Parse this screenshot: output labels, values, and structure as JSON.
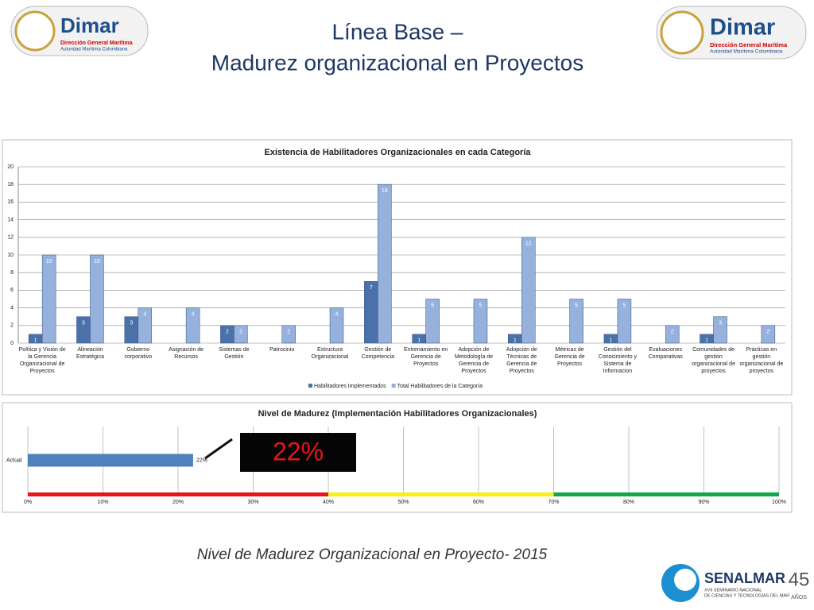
{
  "slide": {
    "title_line1": "Línea Base –",
    "title_line2": "Madurez organizacional en Proyectos",
    "caption": "Nivel de Madurez Organizacional en Proyecto- 2015"
  },
  "logo": {
    "name": "Dimar",
    "line1": "Dirección General Marítima",
    "line2": "Autoridad Marítima Colombiana"
  },
  "footer_logo": {
    "name": "SENALMAR",
    "line1": "XVII SEMINARIO NACIONAL",
    "line2": "DE CIENCIAS Y TECNOLOGÍAS DEL MAR",
    "years": "45",
    "years_label": "AÑOS"
  },
  "chart_data": [
    {
      "type": "grouped-bar",
      "title": "Existencia de Habilitadores Organizacionales en cada Categoría",
      "categories": [
        "Política y Visión de la Gerencia Organizacional de Proyectos",
        "Alineación Estratégica",
        "Gobierno corporativo",
        "Asignación de Recursos",
        "Sistemas de Gestión",
        "Patrocinio",
        "Estructura Organizacional",
        "Gestión de Competencia",
        "Entrenamiento en Gerencia de Proyectos",
        "Adopción de Metodología de Gerencia de Proyectos",
        "Adopción de Técnicas de Gerencia de Proyectos",
        "Métricas de Gerencia de Proyectos",
        "Gestión del Conocimiento y Sistema de Informacion",
        "Evaluaciones Comparativas",
        "Comunidades de gestión organizacional de proyectos",
        "Prácticas en gestión organizacional de proyectos"
      ],
      "series": [
        {
          "name": "Habilitadores Implementados",
          "color": "#4a72a8",
          "values": [
            1,
            3,
            3,
            null,
            2,
            null,
            null,
            7,
            1,
            null,
            1,
            null,
            1,
            null,
            1,
            null
          ]
        },
        {
          "name": "Total Habilitadores de la Categoría",
          "color": "#97b1dd",
          "values": [
            10,
            10,
            4,
            4,
            2,
            2,
            4,
            18,
            5,
            5,
            12,
            5,
            5,
            2,
            3,
            2
          ]
        }
      ],
      "ylim": [
        0,
        20
      ],
      "yticks": [
        0,
        2,
        4,
        6,
        8,
        10,
        12,
        14,
        16,
        18,
        20
      ],
      "grid": true,
      "legend": "bottom"
    },
    {
      "type": "hbar",
      "title": "Nivel de Madurez (Implementación Habilitadores Organizacionales)",
      "categories": [
        "Actual"
      ],
      "values": [
        22
      ],
      "value_labels": [
        "22%"
      ],
      "color": "#4f81bd",
      "xlim": [
        0,
        100
      ],
      "xticks": [
        {
          "value": 0,
          "label": "0%"
        },
        {
          "value": 10,
          "label": "10%"
        },
        {
          "value": 20,
          "label": "20%"
        },
        {
          "value": 30,
          "label": "30%"
        },
        {
          "value": 40,
          "label": "40%"
        },
        {
          "value": 50,
          "label": "50%"
        },
        {
          "value": 60,
          "label": "60%"
        },
        {
          "value": 70,
          "label": "70%"
        },
        {
          "value": 80,
          "label": "80%"
        },
        {
          "value": 90,
          "label": "90%"
        },
        {
          "value": 100,
          "label": "100%"
        }
      ],
      "grid": true,
      "bands": [
        {
          "from": 0,
          "to": 40,
          "color": "#e8141b"
        },
        {
          "from": 40,
          "to": 70,
          "color": "#f7f11a"
        },
        {
          "from": 70,
          "to": 100,
          "color": "#12a84a"
        }
      ],
      "annotation": "22%"
    }
  ]
}
